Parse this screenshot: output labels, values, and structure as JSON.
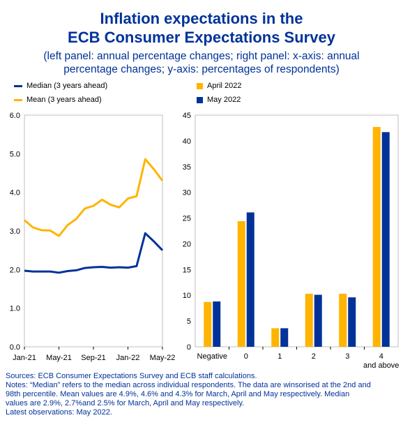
{
  "header": {
    "title_line1": "Inflation expectations in the",
    "title_line2": "ECB Consumer Expectations Survey",
    "subtitle_line1": "(left panel: annual percentage changes; right panel: x-axis: annual",
    "subtitle_line2": "percentage changes; y-axis: percentages of respondents)"
  },
  "legend": {
    "median_label": "Median (3 years ahead)",
    "mean_label": "Mean (3 years ahead)",
    "april_label": "April 2022",
    "may_label": "May 2022"
  },
  "colors": {
    "navy": "#003299",
    "gold": "#FFB400",
    "grid": "#d9d9d9"
  },
  "chart_data": [
    {
      "type": "line",
      "x": [
        "Jan-21",
        "Feb-21",
        "Mar-21",
        "Apr-21",
        "May-21",
        "Jun-21",
        "Jul-21",
        "Aug-21",
        "Sep-21",
        "Oct-21",
        "Nov-21",
        "Dec-21",
        "Jan-22",
        "Feb-22",
        "Mar-22",
        "Apr-22",
        "May-22"
      ],
      "x_tick_labels": [
        "Jan-21",
        "May-21",
        "Sep-21",
        "Jan-22",
        "May-22"
      ],
      "series": [
        {
          "name": "Median (3 years ahead)",
          "color": "#003299",
          "values": [
            1.97,
            1.95,
            1.95,
            1.95,
            1.92,
            1.96,
            1.98,
            2.04,
            2.06,
            2.07,
            2.05,
            2.06,
            2.05,
            2.09,
            2.94,
            2.73,
            2.5
          ]
        },
        {
          "name": "Mean (3 years ahead)",
          "color": "#FFB400",
          "values": [
            3.28,
            3.09,
            3.02,
            3.01,
            2.87,
            3.15,
            3.31,
            3.58,
            3.65,
            3.81,
            3.68,
            3.61,
            3.84,
            3.9,
            4.86,
            4.6,
            4.3
          ]
        }
      ],
      "ylim": [
        0,
        6
      ],
      "y_ticks": [
        "0.0",
        "1.0",
        "2.0",
        "3.0",
        "4.0",
        "5.0",
        "6.0"
      ],
      "grid": false
    },
    {
      "type": "bar",
      "categories": [
        "Negative",
        "0",
        "1",
        "2",
        "3",
        "4 and above"
      ],
      "series": [
        {
          "name": "April 2022",
          "color": "#FFB400",
          "values": [
            8.7,
            24.4,
            3.6,
            10.3,
            10.3,
            42.7
          ]
        },
        {
          "name": "May 2022",
          "color": "#003299",
          "values": [
            8.8,
            26.1,
            3.6,
            10.1,
            9.6,
            41.7
          ]
        }
      ],
      "ylim": [
        0,
        45
      ],
      "y_ticks": [
        "0",
        "5",
        "10",
        "15",
        "20",
        "25",
        "30",
        "35",
        "40",
        "45"
      ],
      "grid": false
    }
  ],
  "notes": {
    "line1": "Sources: ECB Consumer Expectations Survey and ECB staff calculations.",
    "line2": "Notes: “Median” refers to the median across individual respondents. The data are winsorised at the 2nd and",
    "line3": "98th percentile. Mean values are 4.9%, 4.6% and 4.3% for March, April and May respectively. Median",
    "line4": "values are 2.9%, 2.7%and 2.5% for March, April and May respectively.",
    "line5": "Latest observations: May 2022."
  }
}
